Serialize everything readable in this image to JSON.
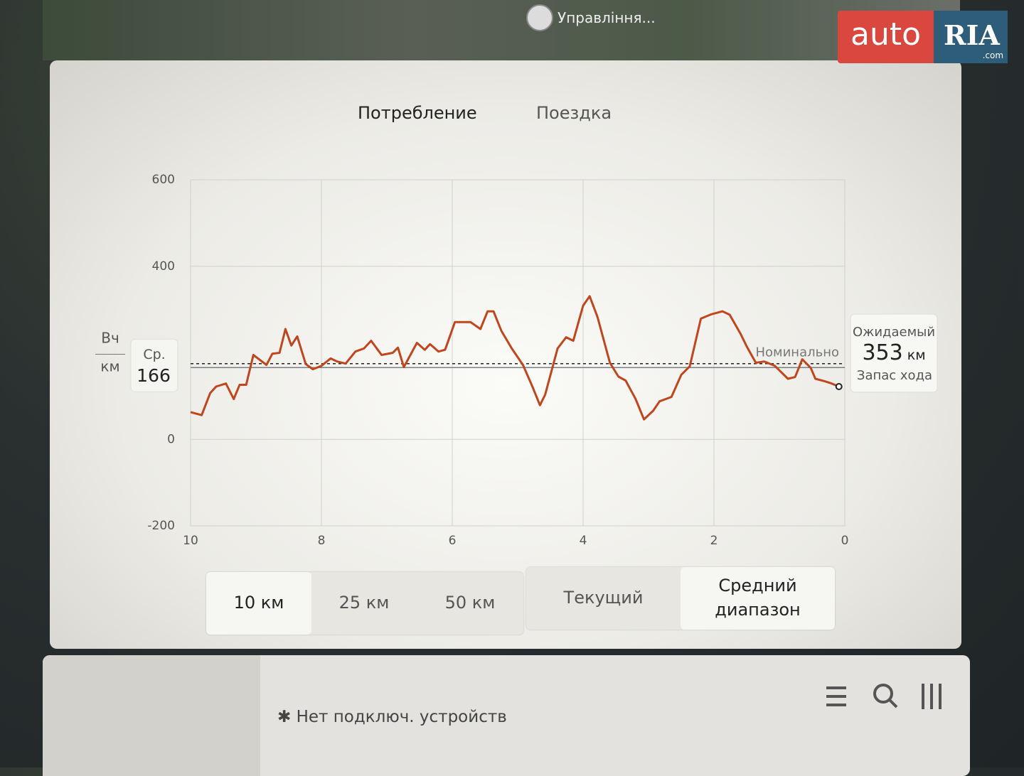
{
  "map_label": "Управління...",
  "watermark": {
    "brand": "auto",
    "ria": "RIA",
    "domain": ".com"
  },
  "tabs": [
    "Потребление",
    "Поездка"
  ],
  "selected_tab": 0,
  "chart_data": {
    "type": "line",
    "y_label": {
      "top": "Вч",
      "bottom": "км"
    },
    "color": "#c0461e",
    "xlim": [
      10,
      0
    ],
    "xticks": [
      10,
      8,
      6,
      4,
      2,
      0
    ],
    "ylim": [
      -200,
      600
    ],
    "yticks": [
      -200,
      0,
      400,
      600
    ],
    "grid": true,
    "x": [
      10,
      9.83,
      9.7,
      9.61,
      9.46,
      9.34,
      9.25,
      9.15,
      9.04,
      8.84,
      8.75,
      8.64,
      8.55,
      8.46,
      8.37,
      8.24,
      8.13,
      8,
      7.86,
      7.76,
      7.63,
      7.48,
      7.35,
      7.24,
      7.08,
      6.91,
      6.83,
      6.74,
      6.54,
      6.42,
      6.34,
      6.21,
      6.11,
      5.96,
      5.72,
      5.57,
      5.46,
      5.37,
      5.25,
      5.09,
      4.92,
      4.78,
      4.66,
      4.58,
      4.39,
      4.26,
      4.15,
      4,
      3.9,
      3.78,
      3.59,
      3.46,
      3.35,
      3.2,
      3.07,
      2.93,
      2.83,
      2.65,
      2.5,
      2.37,
      2.2,
      2.04,
      1.87,
      1.76,
      1.59,
      1.5,
      1.36,
      1.23,
      1.07,
      0.87,
      0.76,
      0.65,
      0.52,
      0.45,
      0.3,
      0.2,
      0.09
    ],
    "values": [
      63,
      56,
      107,
      122,
      129,
      93,
      126,
      126,
      195,
      172,
      198,
      200,
      255,
      217,
      238,
      174,
      162,
      170,
      187,
      180,
      175,
      203,
      210,
      228,
      195,
      200,
      212,
      167,
      223,
      207,
      220,
      203,
      207,
      271,
      271,
      255,
      296,
      296,
      251,
      210,
      172,
      124,
      79,
      103,
      210,
      236,
      228,
      309,
      331,
      283,
      177,
      145,
      136,
      94,
      46,
      66,
      88,
      98,
      149,
      169,
      279,
      289,
      296,
      288,
      243,
      215,
      177,
      180,
      170,
      140,
      144,
      185,
      165,
      140,
      134,
      129,
      122
    ],
    "average": {
      "label": "Ср.",
      "value": 166
    },
    "nominal": {
      "label": "Номинально",
      "value": 175
    },
    "expected_range": {
      "title": "Ожидаемый",
      "value": 353,
      "unit": "км",
      "caption": "Запас хода"
    }
  },
  "range_buttons": [
    "10 км",
    "25 км",
    "50 км"
  ],
  "selected_range": 0,
  "mode_buttons": [
    "Текущий",
    "Средний диапазон"
  ],
  "selected_mode": 1,
  "media": {
    "status": "Нет подключ. устройств"
  }
}
